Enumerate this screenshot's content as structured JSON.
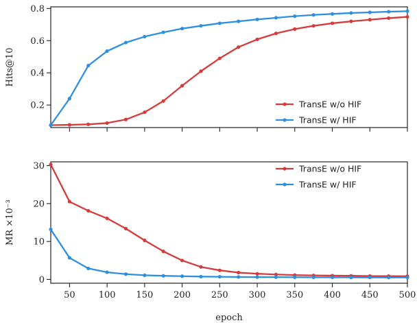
{
  "chart_data": [
    {
      "type": "line",
      "title": "",
      "xlabel": "",
      "ylabel": "Hits@10",
      "xlim": [
        25,
        500
      ],
      "ylim": [
        0.06,
        0.81
      ],
      "xticks": [
        50,
        100,
        150,
        200,
        250,
        300,
        350,
        400,
        450,
        500
      ],
      "yticks": [
        0.2,
        0.4,
        0.6,
        0.8
      ],
      "ytick_labels": [
        "0.2",
        "0.4",
        "0.6",
        "0.8"
      ],
      "x_tick_labels_shown": false,
      "legend_position": "lower-right",
      "x": [
        25,
        50,
        75,
        100,
        125,
        150,
        175,
        200,
        225,
        250,
        275,
        300,
        325,
        350,
        375,
        400,
        425,
        450,
        475,
        500
      ],
      "series": [
        {
          "name": "TransE w/o HIF",
          "color": "#d63a3a",
          "values": [
            0.075,
            0.077,
            0.08,
            0.088,
            0.11,
            0.155,
            0.225,
            0.32,
            0.41,
            0.49,
            0.56,
            0.608,
            0.645,
            0.672,
            0.692,
            0.708,
            0.72,
            0.73,
            0.74,
            0.748
          ]
        },
        {
          "name": "TransE w/ HIF",
          "color": "#2d8fe0",
          "values": [
            0.075,
            0.24,
            0.445,
            0.535,
            0.588,
            0.625,
            0.652,
            0.675,
            0.692,
            0.708,
            0.72,
            0.732,
            0.742,
            0.752,
            0.76,
            0.766,
            0.772,
            0.776,
            0.78,
            0.783
          ]
        }
      ]
    },
    {
      "type": "line",
      "title": "",
      "xlabel": "epoch",
      "ylabel": "MR ×10⁻³",
      "xlim": [
        25,
        500
      ],
      "ylim": [
        -1,
        31
      ],
      "xticks": [
        50,
        100,
        150,
        200,
        250,
        300,
        350,
        400,
        450,
        500
      ],
      "xtick_labels": [
        "50",
        "100",
        "150",
        "200",
        "250",
        "300",
        "350",
        "400",
        "450",
        "500"
      ],
      "yticks": [
        0,
        10,
        20,
        30
      ],
      "ytick_labels": [
        "0",
        "10",
        "20",
        "30"
      ],
      "legend_position": "top-right",
      "x": [
        25,
        50,
        75,
        100,
        125,
        150,
        175,
        200,
        225,
        250,
        275,
        300,
        325,
        350,
        375,
        400,
        425,
        450,
        475,
        500
      ],
      "series": [
        {
          "name": "TransE w/o HIF",
          "color": "#d63a3a",
          "values": [
            30.3,
            20.5,
            18.1,
            16.1,
            13.4,
            10.3,
            7.4,
            5.0,
            3.3,
            2.4,
            1.8,
            1.5,
            1.3,
            1.15,
            1.05,
            1.0,
            0.95,
            0.9,
            0.88,
            0.85
          ]
        },
        {
          "name": "TransE w/ HIF",
          "color": "#2d8fe0",
          "values": [
            13.2,
            5.7,
            2.9,
            1.9,
            1.4,
            1.1,
            0.95,
            0.85,
            0.75,
            0.7,
            0.65,
            0.62,
            0.6,
            0.58,
            0.56,
            0.55,
            0.54,
            0.53,
            0.52,
            0.52
          ]
        }
      ]
    }
  ]
}
